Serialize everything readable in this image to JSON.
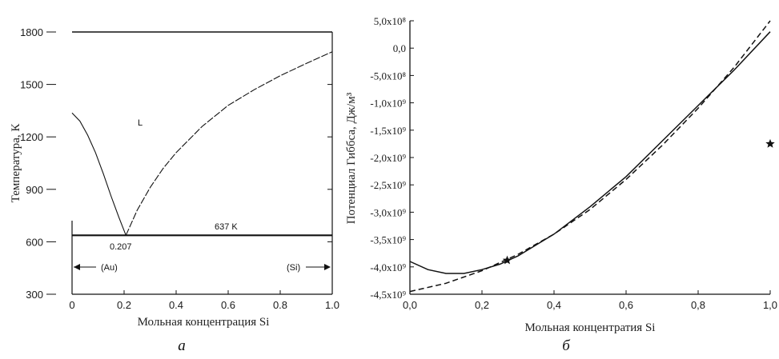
{
  "chart_data": [
    {
      "type": "line",
      "panel_label": "а",
      "xlabel": "Мольная концентрация Si",
      "ylabel": "Температура, К",
      "xlim": [
        0,
        1.0
      ],
      "ylim": [
        300,
        1800
      ],
      "x_ticks": [
        "0",
        "0.2",
        "0.4",
        "0.6",
        "0.8",
        "1.0"
      ],
      "y_ticks": [
        "300",
        "600",
        "900",
        "1200",
        "1500",
        "1800"
      ],
      "annotations": {
        "liquid": "L",
        "eutectic_temp": "637 K",
        "eutectic_comp": "0.207",
        "au_region": "(Au)",
        "si_region": "(Si)"
      },
      "series": [
        {
          "style": "liquidus-left",
          "x": [
            0,
            0.03,
            0.06,
            0.09,
            0.12,
            0.15,
            0.18,
            0.207
          ],
          "y": [
            1337,
            1290,
            1210,
            1110,
            990,
            860,
            740,
            637
          ]
        },
        {
          "style": "liquidus-right",
          "x": [
            0.207,
            0.25,
            0.3,
            0.35,
            0.4,
            0.5,
            0.6,
            0.7,
            0.8,
            0.9,
            1.0
          ],
          "y": [
            637,
            780,
            910,
            1020,
            1110,
            1260,
            1380,
            1470,
            1550,
            1620,
            1687
          ]
        },
        {
          "style": "eutectic",
          "x": [
            0,
            1.0
          ],
          "y": [
            637,
            637
          ]
        }
      ]
    },
    {
      "type": "line",
      "panel_label": "б",
      "xlabel": "Мольная концентратия Si",
      "ylabel": "Потенциал Гиббса, Дж/м³",
      "xlim": [
        0,
        1.0
      ],
      "ylim": [
        -4500000000.0,
        500000000.0
      ],
      "x_ticks": [
        "0,0",
        "0,2",
        "0,4",
        "0,6",
        "0,8",
        "1,0"
      ],
      "y_ticks": [
        "5,0x10⁸",
        "0,0",
        "-5,0x10⁸",
        "-1,0x10⁹",
        "-1,5x10⁹",
        "-2,0x10⁹",
        "-2,5x10⁹",
        "-3,0x10⁹",
        "-3,5x10⁹",
        "-4,0x10⁹",
        "-4,5x10⁹"
      ],
      "series": [
        {
          "style": "solid",
          "x": [
            0,
            0.05,
            0.1,
            0.15,
            0.2,
            0.25,
            0.3,
            0.4,
            0.5,
            0.6,
            0.7,
            0.8,
            0.9,
            1.0
          ],
          "y": [
            -3900000000.0,
            -4050000000.0,
            -4120000000.0,
            -4120000000.0,
            -4050000000.0,
            -3950000000.0,
            -3800000000.0,
            -3400000000.0,
            -2900000000.0,
            -2350000000.0,
            -1700000000.0,
            -1050000000.0,
            -400000000.0,
            300000000.0
          ]
        },
        {
          "style": "dashed",
          "x": [
            0,
            0.1,
            0.2,
            0.3,
            0.4,
            0.5,
            0.6,
            0.7,
            0.8,
            0.9,
            1.0
          ],
          "y": [
            -4450000000.0,
            -4300000000.0,
            -4070000000.0,
            -3770000000.0,
            -3400000000.0,
            -2950000000.0,
            -2400000000.0,
            -1780000000.0,
            -1100000000.0,
            -350000000.0,
            500000000.0
          ]
        }
      ],
      "markers": [
        {
          "x": 0.27,
          "y": -3880000000.0
        },
        {
          "x": 1.0,
          "y": -1750000000.0
        }
      ]
    }
  ]
}
